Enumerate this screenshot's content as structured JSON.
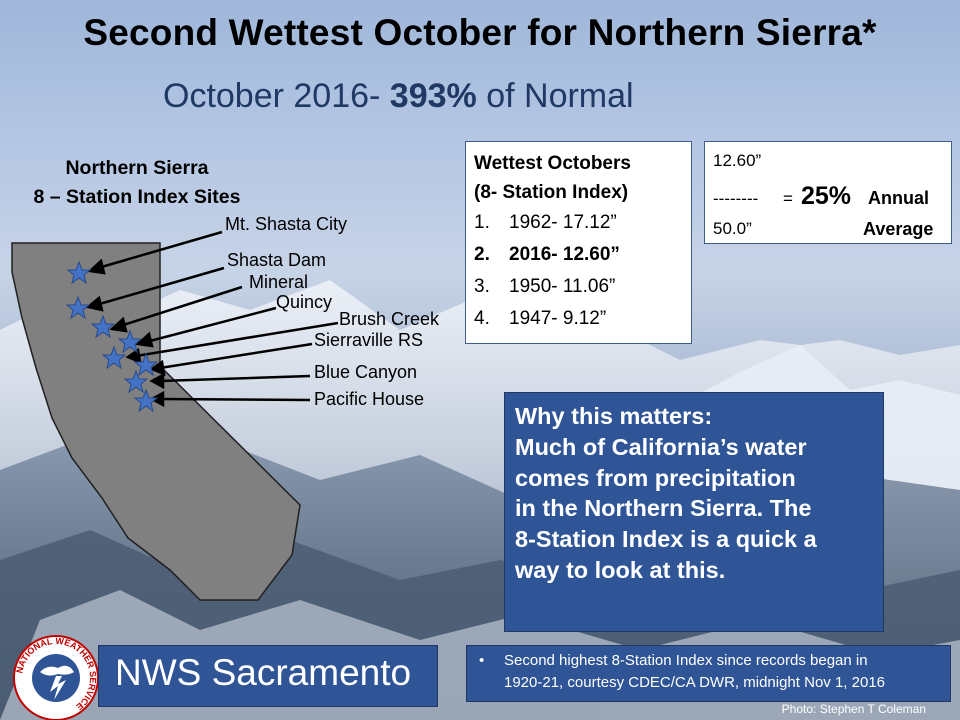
{
  "header": {
    "title": "Second Wettest October for Northern Sierra*",
    "subtitle_prefix": "October 2016- ",
    "subtitle_bold": "393%",
    "subtitle_suffix": " of Normal"
  },
  "map": {
    "heading_line1": "Northern Sierra",
    "heading_line2": "8 – Station Index Sites",
    "stations": [
      {
        "label": "Mt. Shasta City"
      },
      {
        "label": "Shasta Dam"
      },
      {
        "label": "Mineral"
      },
      {
        "label": "Quincy"
      },
      {
        "label": "Brush Creek"
      },
      {
        "label": "Sierraville RS"
      },
      {
        "label": "Blue Canyon"
      },
      {
        "label": "Pacific House"
      }
    ]
  },
  "wettest": {
    "heading_line1": "Wettest Octobers",
    "heading_line2": "(8- Station Index)",
    "rows": [
      {
        "num": "1.",
        "text": "1962- 17.12”"
      },
      {
        "num": "2.",
        "text": "2016- 12.60”"
      },
      {
        "num": "3.",
        "text": "1950- 11.06”"
      },
      {
        "num": "4.",
        "text": "1947- 9.12”"
      }
    ]
  },
  "annual": {
    "numerator": "12.60”",
    "dashes": "--------",
    "equals": "=",
    "percent": "25%",
    "word1": "Annual",
    "denominator": "50.0”",
    "word2": "Average"
  },
  "why": {
    "lines": [
      "Why this matters:",
      "Much of California’s water",
      "comes from precipitation",
      "in the Northern Sierra. The",
      "8-Station Index is a quick a",
      "way to look at this."
    ]
  },
  "footer": {
    "nws_label": "NWS Sacramento",
    "logo_text": "NATIONAL WEATHER SERVICE",
    "note_bullet": "•",
    "note_line1": "Second highest 8-Station Index since records began in",
    "note_line2": "1920-21, courtesy CDEC/CA DWR, midnight Nov 1, 2016",
    "photo_credit": "Photo: Stephen T Coleman"
  },
  "colors": {
    "box_blue": "#2f5597",
    "state_gray": "#808080",
    "star_blue": "#4472c4",
    "subtitle_navy": "#1f3864"
  }
}
